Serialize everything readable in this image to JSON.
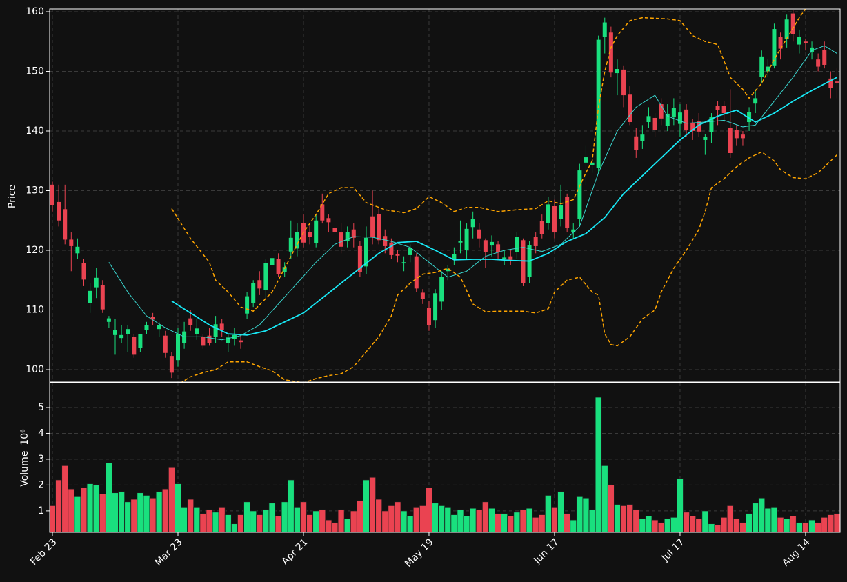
{
  "chart_data": [
    {
      "type": "candlestick",
      "ylabel": "Price",
      "categories": [
        "Feb 23",
        null,
        null,
        null,
        null,
        null,
        null,
        null,
        null,
        null,
        null,
        null,
        null,
        null,
        null,
        null,
        null,
        null,
        null,
        null,
        "Mar 23",
        null,
        null,
        null,
        null,
        null,
        null,
        null,
        null,
        null,
        null,
        null,
        null,
        null,
        null,
        null,
        null,
        null,
        null,
        null,
        "Apr 21",
        null,
        null,
        null,
        null,
        null,
        null,
        null,
        null,
        null,
        null,
        null,
        null,
        null,
        null,
        null,
        null,
        null,
        null,
        null,
        "May 19",
        null,
        null,
        null,
        null,
        null,
        null,
        null,
        null,
        null,
        null,
        null,
        null,
        null,
        null,
        null,
        null,
        null,
        null,
        null,
        "Jun 17",
        null,
        null,
        null,
        null,
        null,
        null,
        null,
        null,
        null,
        null,
        null,
        null,
        null,
        null,
        null,
        null,
        null,
        null,
        null,
        "Jul 17",
        null,
        null,
        null,
        null,
        null,
        null,
        null,
        null,
        null,
        null,
        null,
        null,
        null,
        null,
        null,
        null,
        null,
        null,
        null,
        "Aug 14",
        null,
        null,
        null,
        null,
        null
      ],
      "open": [
        131,
        128.1,
        126.9,
        121.8,
        119.5,
        117.9,
        111.1,
        113.8,
        114.2,
        108,
        105.8,
        105.3,
        105.9,
        105.5,
        103.6,
        106.6,
        108.9,
        106.8,
        105.7,
        102.3,
        101.6,
        104.4,
        108.6,
        105.9,
        105.5,
        105.7,
        105.5,
        107.7,
        104.4,
        105.2,
        104.9,
        109.4,
        111.1,
        115,
        113.4,
        117.5,
        118.5,
        116.4,
        119.8,
        120.3,
        124.6,
        123.1,
        121.2,
        127.7,
        125.4,
        123.8,
        123,
        121.5,
        123.5,
        120.7,
        117.3,
        125.7,
        126.1,
        122.4,
        121.3,
        119.4,
        117.8,
        119.2,
        119,
        112.9,
        110.4,
        108.3,
        111.4,
        116.5,
        118.5,
        121.3,
        120.1,
        123.9,
        123.5,
        121.7,
        120.8,
        121,
        118.5,
        119,
        119.7,
        121.7,
        115.5,
        122.2,
        124.9,
        124.6,
        127.4,
        125.2,
        129,
        123.1,
        125.2,
        134.7,
        134.3,
        133.8,
        155.8,
        156.5,
        149.7,
        150.3,
        146.1,
        139.1,
        138.3,
        141.5,
        142.2,
        144.5,
        140.9,
        142.3,
        141.2,
        143.6,
        141.3,
        141.6,
        138.5,
        139.8,
        144.2,
        144.2,
        140.5,
        140.2,
        139.4,
        141.5,
        144.6,
        149.1,
        150,
        151,
        155.8,
        155.4,
        159.7,
        154.5,
        155,
        153.3,
        152,
        153.6,
        148.8,
        148.3
      ],
      "high": [
        131.5,
        131,
        131,
        123,
        122,
        118.5,
        114.5,
        117,
        115,
        109,
        108.5,
        107.5,
        107.5,
        106,
        106,
        108,
        109.5,
        108,
        106.5,
        103,
        107,
        108,
        110,
        108.5,
        106,
        107,
        109,
        108.5,
        106,
        107,
        106,
        113,
        115,
        116.5,
        118.5,
        119.5,
        119.5,
        118,
        125,
        124.5,
        126,
        124.5,
        126,
        129.5,
        126,
        125,
        124.5,
        124,
        124.5,
        121.5,
        124,
        130,
        127,
        123.5,
        122,
        120,
        119,
        121,
        119.5,
        113.5,
        111.5,
        113.5,
        116.5,
        117.5,
        120.5,
        125,
        124.5,
        126.5,
        124.5,
        122,
        122.5,
        121.5,
        120,
        120,
        123,
        122,
        121.5,
        123,
        126,
        129,
        128.5,
        131,
        129.5,
        124.5,
        134.5,
        137.5,
        135,
        156,
        159,
        157.5,
        152,
        151,
        147.5,
        140.5,
        141,
        144,
        143,
        145.5,
        144.5,
        145.5,
        144.5,
        144.5,
        142,
        143,
        139.5,
        143,
        145,
        145,
        147,
        141,
        140,
        144,
        147,
        153.5,
        152,
        158,
        156.5,
        159.5,
        160.3,
        157,
        155.5,
        155,
        153,
        155,
        150,
        150.5
      ],
      "low": [
        126.5,
        124,
        121,
        116.5,
        118.5,
        114,
        109.5,
        112,
        109.5,
        107,
        102.5,
        104.5,
        103,
        102,
        103,
        106,
        107.5,
        105.5,
        102,
        98.6,
        100.5,
        103.5,
        106.5,
        105,
        103.5,
        104,
        104.5,
        105.5,
        103,
        104,
        103.5,
        108.5,
        110.5,
        112.5,
        112,
        116.5,
        115.5,
        115.5,
        118.5,
        119,
        120.5,
        121,
        120.5,
        124.5,
        123,
        121.5,
        119.5,
        120.5,
        120.5,
        115.5,
        116,
        121,
        121,
        119.5,
        118.5,
        118,
        116.5,
        118,
        113,
        111,
        106.5,
        107,
        110,
        115,
        117.5,
        119.5,
        118.5,
        122,
        120.5,
        117,
        119,
        118.5,
        117.5,
        117.5,
        118.5,
        114,
        114.5,
        119.5,
        122,
        123.5,
        122,
        124,
        123,
        122,
        124,
        131,
        133,
        133,
        153,
        149,
        146,
        144,
        141,
        135.5,
        137,
        140.5,
        139,
        141,
        140,
        141,
        139,
        139,
        138.5,
        139,
        136,
        138,
        141,
        141.5,
        135.5,
        137.5,
        137.5,
        140,
        143,
        148,
        149,
        150.5,
        152,
        154,
        155,
        153,
        153.5,
        152,
        150,
        150.5,
        145.5,
        145.5
      ],
      "close": [
        127.6,
        125,
        121.8,
        120.7,
        120.6,
        115.1,
        113.2,
        115.4,
        110.1,
        108.6,
        106.7,
        105.8,
        106.8,
        102.5,
        105.9,
        107.4,
        108.4,
        107.4,
        102.8,
        99.5,
        105.9,
        106.4,
        107.4,
        106.9,
        104,
        104.4,
        107.6,
        106.6,
        105.4,
        105.8,
        104.6,
        112.3,
        114.5,
        113.6,
        117.9,
        118.7,
        116,
        117.2,
        122.1,
        123.1,
        121.3,
        122.2,
        125,
        125,
        124.7,
        123.1,
        120.6,
        123.1,
        122.1,
        116.3,
        122.1,
        122.3,
        121.7,
        120.7,
        119.2,
        119.1,
        118,
        120.4,
        113.6,
        111.8,
        107.4,
        112.8,
        115.5,
        116.9,
        119.4,
        121.6,
        123.6,
        125.2,
        122,
        119.7,
        121.4,
        119.7,
        118.8,
        118.4,
        122.3,
        114.5,
        120.9,
        120.7,
        122.7,
        127.7,
        123,
        127.6,
        123.8,
        123.5,
        133.4,
        135.6,
        134.7,
        155.3,
        158.2,
        149.8,
        150.4,
        146,
        141.5,
        136.8,
        139.4,
        142.5,
        140.2,
        142.1,
        142.9,
        143.9,
        143.1,
        140.1,
        140,
        139.9,
        139,
        142.3,
        143.5,
        143,
        136.3,
        138.8,
        138.8,
        143.2,
        145.5,
        152.5,
        150.8,
        157.1,
        153.8,
        158.7,
        156.2,
        155.8,
        154.7,
        154,
        150.8,
        151.1,
        147.2,
        148.1
      ],
      "up_color": "#19e07e",
      "down_color": "#ea4351",
      "lines": [
        {
          "color": "#18e8f5",
          "width": 1.8,
          "dash": null,
          "x": [
            19,
            22,
            25,
            28,
            31,
            34,
            37,
            40,
            43,
            46,
            49,
            52,
            55,
            58,
            61,
            64,
            67,
            70,
            73,
            76,
            79,
            82,
            85,
            88,
            91,
            94,
            97,
            100,
            103,
            106,
            109,
            112,
            115,
            118,
            121,
            125
          ],
          "values": [
            111.5,
            109.5,
            107.5,
            106,
            105.8,
            106.5,
            108,
            109.5,
            112,
            114.5,
            117,
            119.5,
            121.3,
            121.5,
            120,
            118.4,
            118.5,
            118.5,
            118.3,
            118.2,
            119.5,
            121.5,
            122.8,
            125.5,
            129.5,
            132.5,
            135.5,
            138.5,
            141,
            142.5,
            143.5,
            141.5,
            143,
            145,
            146.8,
            149
          ]
        },
        {
          "color": "#3ad7d0",
          "width": 1,
          "dash": null,
          "x": [
            9,
            12,
            15,
            18,
            21,
            24,
            27,
            30,
            33,
            36,
            39,
            42,
            45,
            48,
            51,
            54,
            57,
            60,
            63,
            66,
            69,
            72,
            75,
            78,
            81,
            84,
            87,
            90,
            93,
            96,
            98,
            101,
            104,
            107,
            110,
            112,
            115,
            118,
            121,
            123,
            125
          ],
          "values": [
            118,
            113,
            109,
            107,
            105.5,
            105.5,
            105,
            105.7,
            107.5,
            111,
            114.5,
            118,
            121,
            122.3,
            122.2,
            121.5,
            120.5,
            118,
            115.5,
            116.5,
            119,
            120,
            120.5,
            119.8,
            121,
            124,
            133,
            140,
            144,
            146,
            142.5,
            141.3,
            141.5,
            141.8,
            140.7,
            141,
            145,
            149,
            153.5,
            154.3,
            153
          ]
        },
        {
          "color": "#ffa500",
          "width": 1.5,
          "dash": "5 3",
          "x": [
            19,
            22,
            25,
            26,
            28,
            30,
            32,
            35,
            38,
            40,
            42,
            44,
            46,
            48,
            50,
            53,
            56,
            58,
            60,
            62,
            64,
            66,
            68,
            71,
            74,
            77,
            79,
            81,
            83,
            85,
            86,
            87,
            88,
            89,
            90,
            92,
            94,
            98,
            100,
            102,
            104,
            106,
            108,
            110,
            111,
            113,
            115,
            117,
            119,
            121
          ],
          "values": [
            127,
            122,
            118,
            115,
            113,
            110.5,
            109.8,
            113,
            119,
            123,
            126,
            129.5,
            130.5,
            130.5,
            128,
            126.8,
            126.3,
            127,
            129,
            128,
            126.5,
            127.2,
            127.2,
            126.5,
            126.8,
            127,
            128.3,
            127.8,
            128.5,
            133,
            135,
            144,
            150,
            154,
            156,
            158.5,
            159,
            158.8,
            158.5,
            156,
            155,
            154.5,
            149,
            147,
            145.5,
            148,
            152,
            155.5,
            159,
            162
          ]
        },
        {
          "color": "#ffa500",
          "width": 1.5,
          "dash": "5 3",
          "x": [
            19,
            20,
            22,
            24,
            26,
            28,
            31,
            33,
            35,
            37,
            40,
            42,
            44,
            46,
            48,
            50,
            52,
            54,
            55,
            57,
            59,
            61,
            63,
            65,
            67,
            69,
            71,
            73,
            75,
            77,
            79,
            80,
            82,
            84,
            86,
            87,
            88,
            89,
            90,
            92,
            94,
            96,
            97,
            99,
            101,
            103,
            104,
            105,
            107,
            109,
            111,
            113,
            115,
            116,
            118,
            120,
            122,
            124,
            125
          ],
          "values": [
            96.5,
            97.5,
            98.8,
            99.5,
            100,
            101.3,
            101.3,
            100.5,
            99.8,
            98.3,
            97.8,
            98.5,
            99,
            99.3,
            100.5,
            103,
            105.5,
            109,
            112.5,
            114.5,
            116,
            116.3,
            117,
            115.5,
            111,
            109.7,
            109.8,
            109.8,
            109.8,
            109.5,
            110.2,
            113,
            115,
            115.5,
            113,
            112.5,
            106,
            104.2,
            104,
            105.5,
            108.5,
            110,
            113,
            117,
            120,
            123.5,
            126.5,
            130.5,
            132,
            134,
            135.5,
            136.5,
            135,
            133.5,
            132.2,
            132,
            133,
            135,
            136
          ]
        }
      ],
      "xlim": [
        -0.44,
        125.5
      ],
      "ylim": [
        97.92,
        160.46
      ],
      "yticks": [
        100,
        110,
        120,
        130,
        140,
        150,
        160
      ],
      "grid": true
    },
    {
      "type": "bar",
      "ylabel": "Volume",
      "ylabel_exponent": "10⁶",
      "values": [
        1.2,
        2.2,
        2.75,
        1.85,
        1.55,
        1.9,
        2.05,
        2.0,
        1.65,
        2.85,
        1.7,
        1.75,
        1.35,
        1.45,
        1.7,
        1.6,
        1.5,
        1.75,
        1.85,
        2.7,
        2.05,
        1.15,
        1.45,
        1.15,
        0.9,
        1.05,
        0.95,
        1.15,
        0.85,
        0.5,
        0.85,
        1.35,
        1.0,
        0.85,
        1.05,
        1.3,
        0.8,
        1.35,
        2.2,
        1.15,
        1.35,
        0.85,
        1.0,
        1.05,
        0.65,
        0.55,
        1.05,
        0.7,
        1.0,
        1.4,
        2.2,
        2.3,
        1.45,
        1.0,
        1.2,
        1.35,
        1.0,
        0.8,
        1.15,
        1.2,
        1.9,
        1.3,
        1.2,
        1.15,
        0.85,
        1.05,
        0.8,
        1.1,
        1.05,
        1.35,
        1.1,
        0.9,
        0.9,
        0.8,
        0.95,
        1.05,
        1.1,
        0.75,
        0.85,
        1.6,
        1.15,
        1.75,
        0.9,
        0.65,
        1.55,
        1.5,
        1.05,
        5.4,
        2.75,
        2.0,
        1.25,
        1.2,
        1.25,
        1.05,
        0.7,
        0.8,
        0.65,
        0.55,
        0.7,
        0.75,
        2.25,
        0.95,
        0.8,
        0.7,
        1.0,
        0.5,
        0.45,
        0.75,
        1.2,
        0.7,
        0.55,
        0.9,
        1.3,
        1.5,
        1.1,
        1.15,
        0.75,
        0.7,
        0.8,
        0.55,
        0.55,
        0.65,
        0.55,
        0.75,
        0.85,
        0.9
      ],
      "ylim": [
        0.17,
        5.96
      ],
      "yticks": [
        1,
        2,
        3,
        4,
        5
      ],
      "grid": true
    }
  ]
}
